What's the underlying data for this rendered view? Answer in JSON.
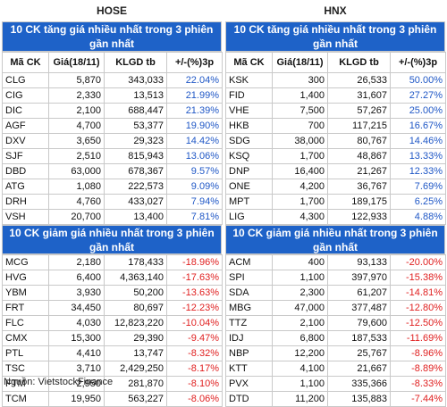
{
  "hose": {
    "market": "HOSE",
    "gainers_title": "10 CK tăng giá nhiều nhất trong 3 phiên gần nhất",
    "losers_title": "10 CK giảm giá nhiều nhất trong 3 phiên gần nhất",
    "headers": [
      "Mã CK",
      "Giá(18/11)",
      "KLGD tb",
      "+/-(%)3p"
    ],
    "gainers": [
      [
        "CLG",
        "5,870",
        "343,033",
        "22.04%"
      ],
      [
        "CIG",
        "2,330",
        "13,513",
        "21.99%"
      ],
      [
        "DIC",
        "2,100",
        "688,447",
        "21.39%"
      ],
      [
        "AGF",
        "4,700",
        "53,377",
        "19.90%"
      ],
      [
        "DXV",
        "3,650",
        "29,323",
        "14.42%"
      ],
      [
        "SJF",
        "2,510",
        "815,943",
        "13.06%"
      ],
      [
        "DBD",
        "63,000",
        "678,367",
        "9.57%"
      ],
      [
        "ATG",
        "1,080",
        "222,573",
        "9.09%"
      ],
      [
        "DRH",
        "4,760",
        "433,027",
        "7.94%"
      ],
      [
        "VSH",
        "20,700",
        "13,400",
        "7.81%"
      ]
    ],
    "losers": [
      [
        "MCG",
        "2,180",
        "178,433",
        "-18.96%"
      ],
      [
        "HVG",
        "6,400",
        "4,363,140",
        "-17.63%"
      ],
      [
        "YBM",
        "3,930",
        "50,200",
        "-13.63%"
      ],
      [
        "FRT",
        "34,450",
        "80,697",
        "-12.23%"
      ],
      [
        "FLC",
        "4,030",
        "12,823,220",
        "-10.04%"
      ],
      [
        "CMX",
        "15,300",
        "29,390",
        "-9.47%"
      ],
      [
        "PTL",
        "4,410",
        "13,747",
        "-8.32%"
      ],
      [
        "TSC",
        "3,710",
        "2,429,250",
        "-8.17%"
      ],
      [
        "FTM",
        "2,950",
        "281,870",
        "-8.10%"
      ],
      [
        "TCM",
        "19,950",
        "563,227",
        "-8.06%"
      ]
    ]
  },
  "hnx": {
    "market": "HNX",
    "gainers_title": "10 CK tăng giá nhiều nhất trong 3 phiên gần nhất",
    "losers_title": "10 CK giảm giá nhiều nhất trong 3 phiên gần nhất",
    "headers": [
      "Mã CK",
      "Giá(18/11)",
      "KLGD tb",
      "+/-(%)3p"
    ],
    "gainers": [
      [
        "KSK",
        "300",
        "26,533",
        "50.00%"
      ],
      [
        "FID",
        "1,400",
        "31,607",
        "27.27%"
      ],
      [
        "VHE",
        "7,500",
        "57,267",
        "25.00%"
      ],
      [
        "HKB",
        "700",
        "117,215",
        "16.67%"
      ],
      [
        "SDG",
        "38,000",
        "80,767",
        "14.46%"
      ],
      [
        "KSQ",
        "1,700",
        "48,867",
        "13.33%"
      ],
      [
        "DNP",
        "16,400",
        "21,267",
        "12.33%"
      ],
      [
        "ONE",
        "4,200",
        "36,767",
        "7.69%"
      ],
      [
        "MPT",
        "1,700",
        "189,175",
        "6.25%"
      ],
      [
        "LIG",
        "4,300",
        "122,933",
        "4.88%"
      ]
    ],
    "losers": [
      [
        "ACM",
        "400",
        "93,133",
        "-20.00%"
      ],
      [
        "SPI",
        "1,100",
        "397,970",
        "-15.38%"
      ],
      [
        "SDA",
        "2,300",
        "61,207",
        "-14.81%"
      ],
      [
        "MBG",
        "47,000",
        "377,487",
        "-12.80%"
      ],
      [
        "TTZ",
        "2,100",
        "79,600",
        "-12.50%"
      ],
      [
        "IDJ",
        "6,800",
        "187,533",
        "-11.69%"
      ],
      [
        "NBP",
        "12,200",
        "25,767",
        "-8.96%"
      ],
      [
        "KTT",
        "4,100",
        "21,667",
        "-8.89%"
      ],
      [
        "PVX",
        "1,100",
        "335,366",
        "-8.33%"
      ],
      [
        "DTD",
        "11,200",
        "135,883",
        "-7.44%"
      ]
    ]
  },
  "source": "Nguồn: VietstockFinance",
  "colors": {
    "header_bg": "#1e62c8",
    "up": "#1f57c6",
    "down": "#e02020"
  }
}
